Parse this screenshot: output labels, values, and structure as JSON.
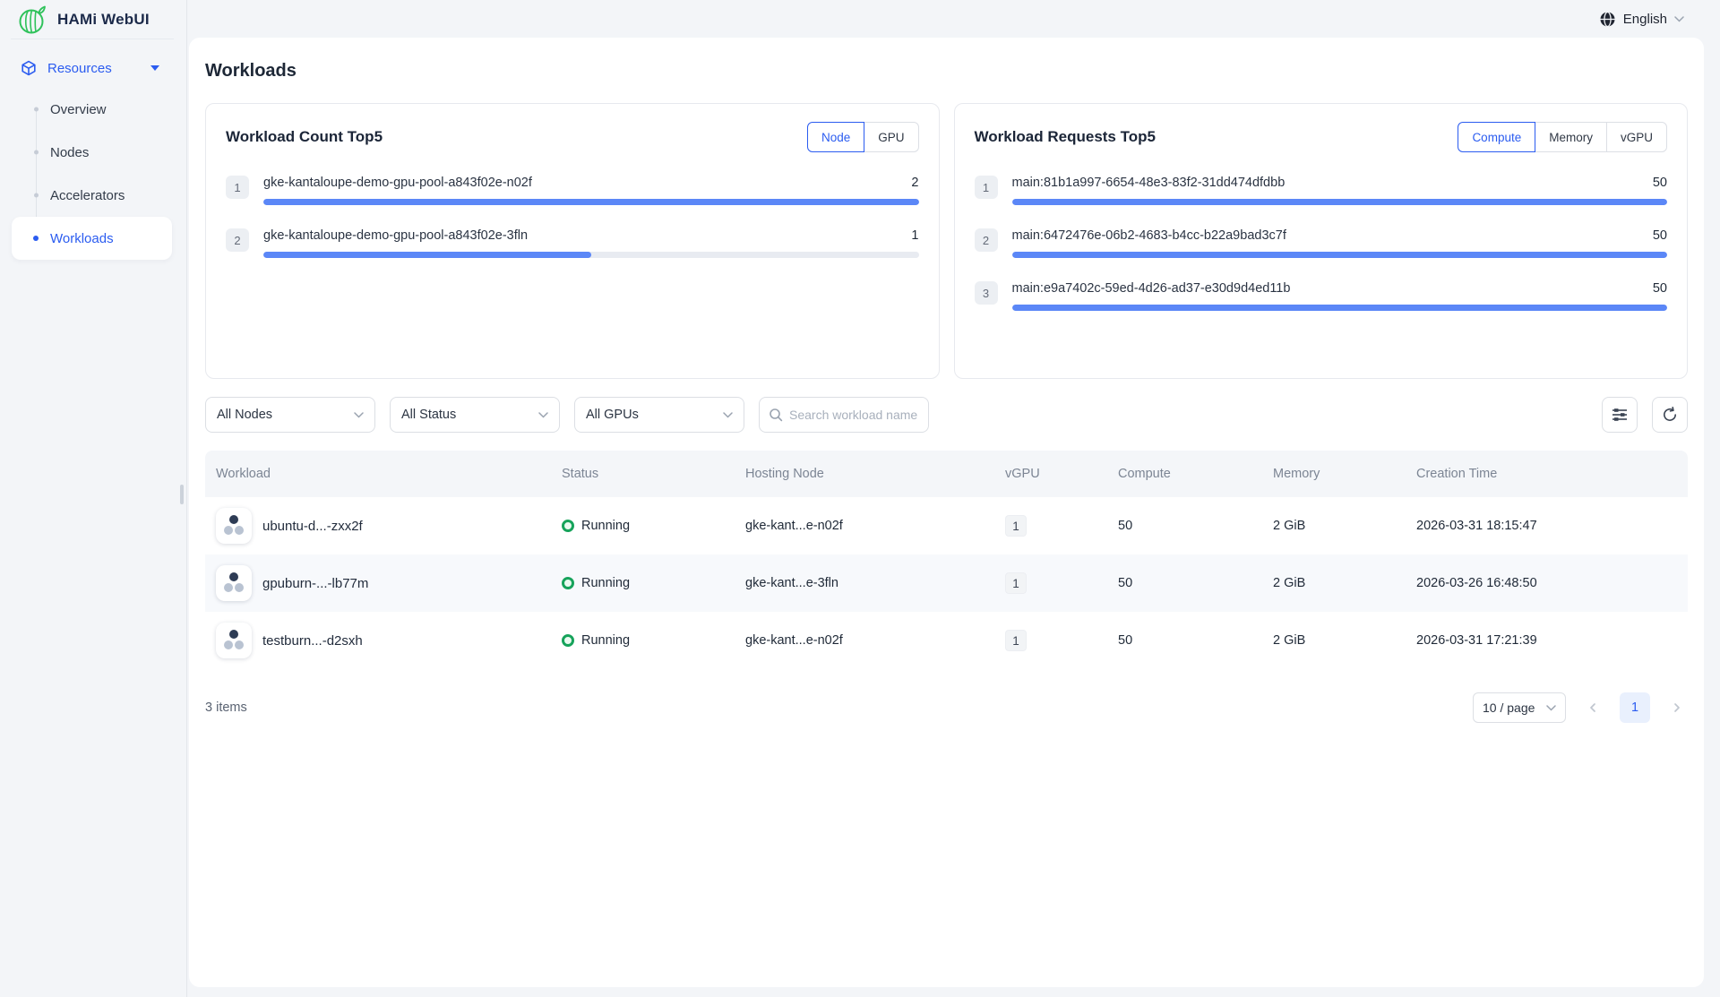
{
  "brand": {
    "title": "HAMi WebUI"
  },
  "topbar": {
    "language": "English"
  },
  "sidebar": {
    "section": {
      "label": "Resources",
      "expanded": true
    },
    "items": [
      {
        "label": "Overview",
        "active": false
      },
      {
        "label": "Nodes",
        "active": false
      },
      {
        "label": "Accelerators",
        "active": false
      },
      {
        "label": "Workloads",
        "active": true
      }
    ]
  },
  "page": {
    "title": "Workloads"
  },
  "panels": [
    {
      "id": "count",
      "title": "Workload Count Top5",
      "toggles": [
        {
          "label": "Node",
          "selected": true
        },
        {
          "label": "GPU",
          "selected": false
        }
      ],
      "rows": [
        {
          "rank": "1",
          "label": "gke-kantaloupe-demo-gpu-pool-a843f02e-n02f",
          "value": "2",
          "percent": 100
        },
        {
          "rank": "2",
          "label": "gke-kantaloupe-demo-gpu-pool-a843f02e-3fln",
          "value": "1",
          "percent": 50
        }
      ]
    },
    {
      "id": "requests",
      "title": "Workload Requests Top5",
      "toggles": [
        {
          "label": "Compute",
          "selected": true
        },
        {
          "label": "Memory",
          "selected": false
        },
        {
          "label": "vGPU",
          "selected": false
        }
      ],
      "rows": [
        {
          "rank": "1",
          "label": "main:81b1a997-6654-48e3-83f2-31dd474dfdbb",
          "value": "50",
          "percent": 100
        },
        {
          "rank": "2",
          "label": "main:6472476e-06b2-4683-b4cc-b22a9bad3c7f",
          "value": "50",
          "percent": 100
        },
        {
          "rank": "3",
          "label": "main:e9a7402c-59ed-4d26-ad37-e30d9d4ed11b",
          "value": "50",
          "percent": 100
        }
      ]
    }
  ],
  "filters": {
    "node": {
      "value": "All Nodes"
    },
    "status": {
      "value": "All Status"
    },
    "gpu": {
      "value": "All GPUs"
    },
    "search": {
      "placeholder": "Search workload name"
    }
  },
  "table": {
    "columns": [
      "Workload",
      "Status",
      "Hosting Node",
      "vGPU",
      "Compute",
      "Memory",
      "Creation Time"
    ],
    "rows": [
      {
        "name": "ubuntu-d...-zxx2f",
        "status": "Running",
        "node": "gke-kant...e-n02f",
        "vgpu": "1",
        "compute": "50",
        "memory": "2 GiB",
        "created": "2026-03-31 18:15:47"
      },
      {
        "name": "gpuburn-...-lb77m",
        "status": "Running",
        "node": "gke-kant...e-3fln",
        "vgpu": "1",
        "compute": "50",
        "memory": "2 GiB",
        "created": "2026-03-26 16:48:50"
      },
      {
        "name": "testburn...-d2sxh",
        "status": "Running",
        "node": "gke-kant...e-n02f",
        "vgpu": "1",
        "compute": "50",
        "memory": "2 GiB",
        "created": "2026-03-31 17:21:39"
      }
    ]
  },
  "footer": {
    "total": "3 items",
    "page_size": "10 / page",
    "current_page": "1"
  },
  "icons": {
    "brand": "watermelon-logo",
    "language": "globe-icon",
    "resources": "box-cube-icon",
    "expand": "caret-down-icon",
    "search": "magnifier-icon",
    "table_settings": "column-settings-icon",
    "refresh": "refresh-icon",
    "workload": "pods-icon",
    "status": "green-ring-icon",
    "pager_prev": "chevron-left-icon",
    "pager_next": "chevron-right-icon"
  },
  "colors": {
    "primary_blue": "#2b5cf0",
    "bar_fill": "#5b87f7",
    "bar_track": "#e8ebf1",
    "status_green": "#17a35b",
    "logo_green": "#2fc25b",
    "page_bg": "#f3f5f8",
    "table_header_bg": "#f4f6f9",
    "current_page_bg": "#e9f0fd"
  }
}
